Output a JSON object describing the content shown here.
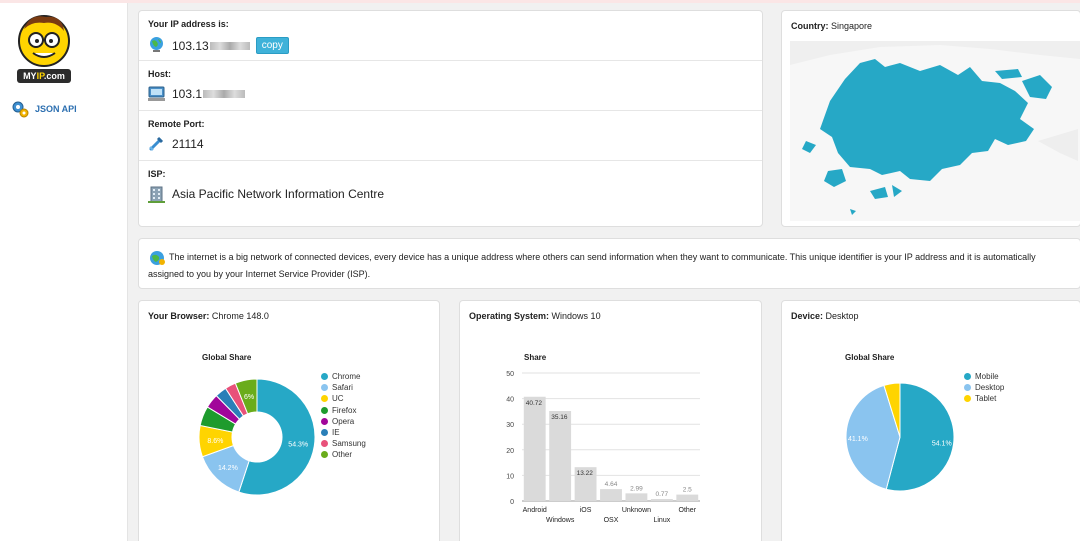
{
  "brand": {
    "logo_text_a": "MY",
    "logo_text_b": "IP",
    "logo_text_c": ".com"
  },
  "sidebar": {
    "json_api_label": "JSON API"
  },
  "ip_info": {
    "ip_label": "Your IP address is:",
    "ip_value": "103.13",
    "copy_label": "copy",
    "host_label": "Host:",
    "host_value": "103.1",
    "port_label": "Remote Port:",
    "port_value": "21114",
    "isp_label": "ISP:",
    "isp_value": "Asia Pacific Network Information Centre"
  },
  "country": {
    "label": "Country:",
    "value": "Singapore",
    "map_color": "#26a8c6"
  },
  "info": {
    "text": "The internet is a big network of connected devices, every device has a unique address where others can send information when they want to communicate. This unique identifier is your IP address and it is automatically assigned to you by your Internet Service Provider (ISP)."
  },
  "browser": {
    "label": "Your Browser:",
    "value": "Chrome 148.0",
    "chart_data": {
      "type": "pie",
      "title": "Global Share",
      "categories": [
        "Chrome",
        "Safari",
        "UC",
        "Firefox",
        "Opera",
        "IE",
        "Samsung",
        "Other"
      ],
      "values": [
        54.3,
        14.2,
        8.6,
        5.4,
        3.9,
        3.2,
        3.0,
        6.0
      ],
      "slice_labels": [
        "54.3%",
        "14.2%",
        "8.6%",
        "",
        "",
        "",
        "",
        "6%"
      ],
      "colors": [
        "#26a8c6",
        "#8ac4ef",
        "#ffd400",
        "#1e9b2d",
        "#a1069a",
        "#2a7fb8",
        "#e8517a",
        "#6aac1b"
      ],
      "donut": true,
      "legend": "right"
    }
  },
  "os": {
    "label": "Operating System:",
    "value": "Windows 10",
    "chart_data": {
      "type": "bar",
      "title": "Share",
      "categories": [
        "Android",
        "Windows",
        "iOS",
        "OSX",
        "Unknown",
        "Linux",
        "Other"
      ],
      "values": [
        40.72,
        35.16,
        13.22,
        4.64,
        2.99,
        0.77,
        2.5
      ],
      "value_labels": [
        "40.72",
        "35.16",
        "13.22",
        "4.64",
        "2.99",
        "0.77",
        "2.5"
      ],
      "ylim": [
        0,
        50
      ],
      "yticks": [
        "0",
        "10",
        "20",
        "30",
        "40",
        "50"
      ],
      "grid": true,
      "bar_color": "#dadada"
    }
  },
  "device": {
    "label": "Device:",
    "value": "Desktop",
    "chart_data": {
      "type": "pie",
      "title": "Global Share",
      "categories": [
        "Mobile",
        "Desktop",
        "Tablet"
      ],
      "values": [
        54.1,
        41.1,
        4.8
      ],
      "slice_labels": [
        "54.1%",
        "41.1%",
        ""
      ],
      "colors": [
        "#26a8c6",
        "#8ac4ef",
        "#ffd400"
      ],
      "donut": false,
      "legend": "right"
    }
  }
}
